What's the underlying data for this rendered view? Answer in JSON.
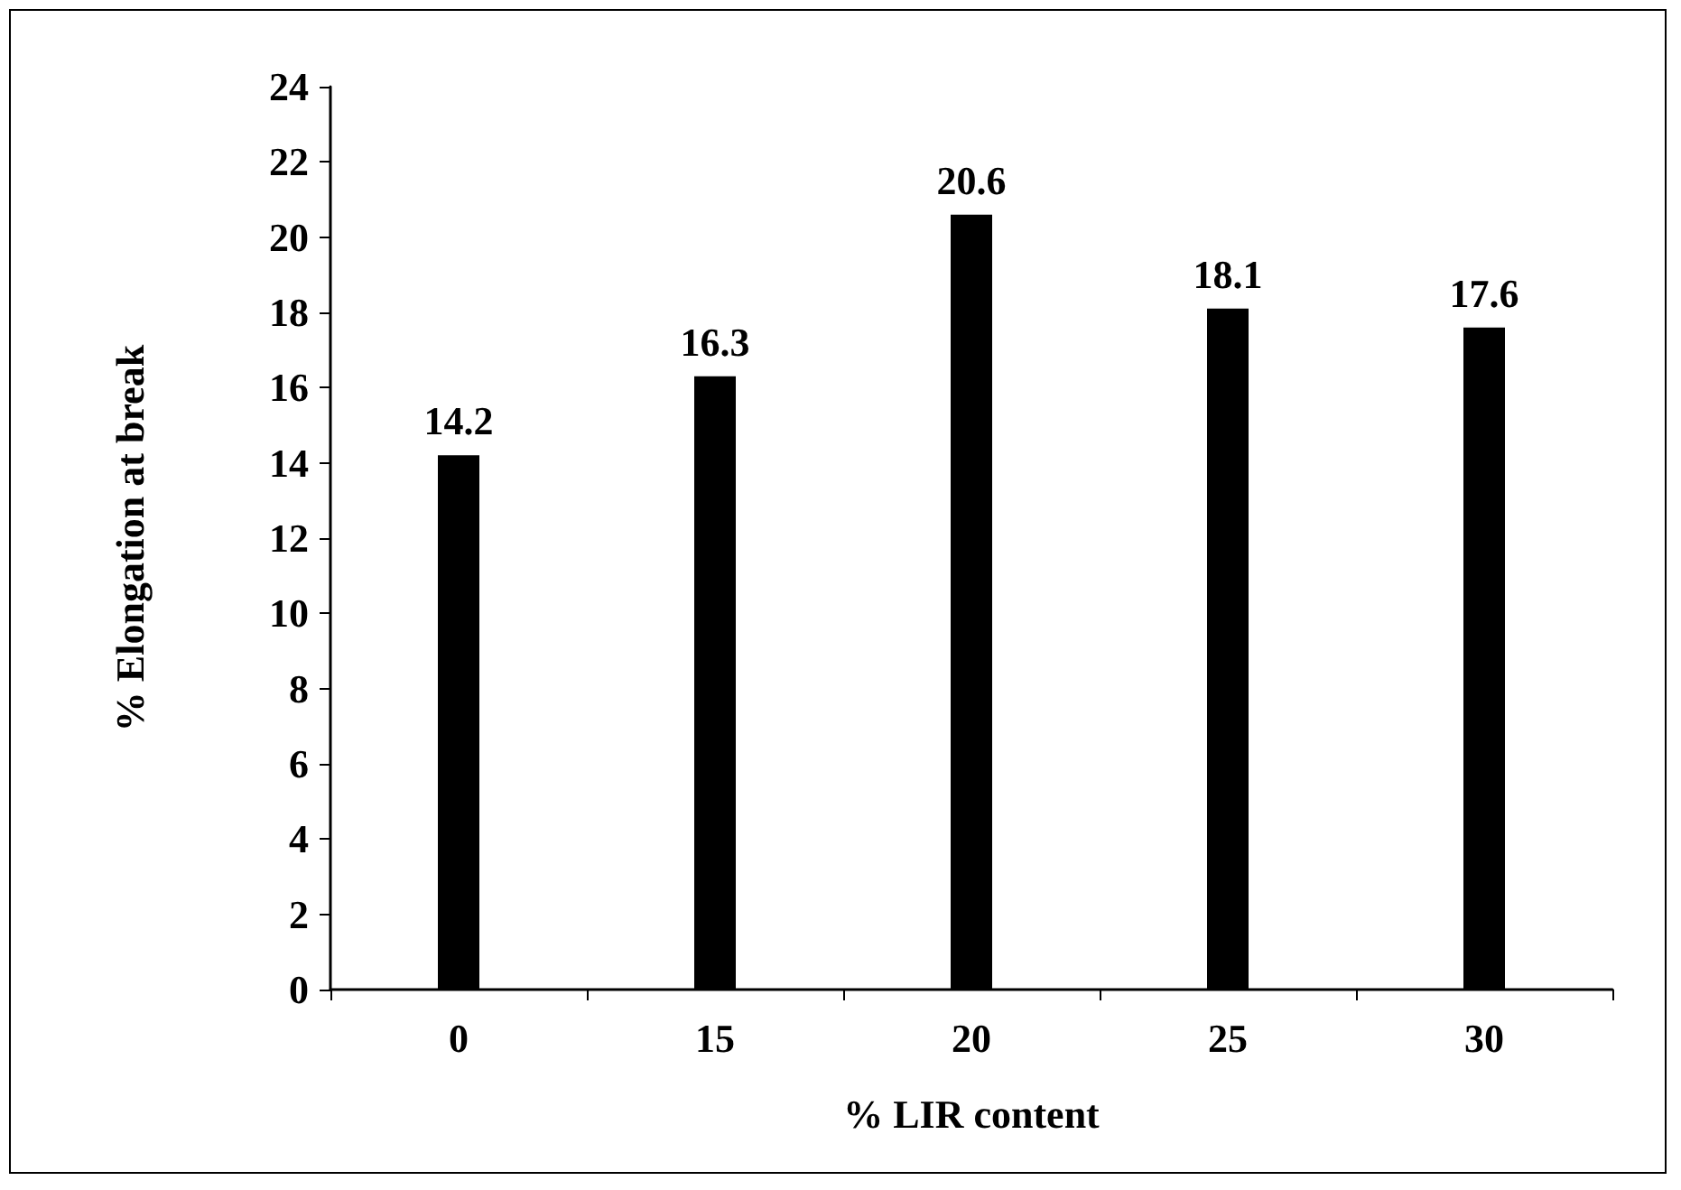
{
  "chart_data": {
    "type": "bar",
    "xlabel": "% LIR content",
    "ylabel": "% Elongation at break",
    "categories": [
      "0",
      "15",
      "20",
      "25",
      "30"
    ],
    "values": [
      14.2,
      16.3,
      20.6,
      18.1,
      17.6
    ],
    "color": "#000000",
    "ylim": [
      0,
      24
    ],
    "yticks": [
      0,
      2,
      4,
      6,
      8,
      10,
      12,
      14,
      16,
      18,
      20,
      22,
      24
    ],
    "grid": false,
    "data_labels": true
  }
}
